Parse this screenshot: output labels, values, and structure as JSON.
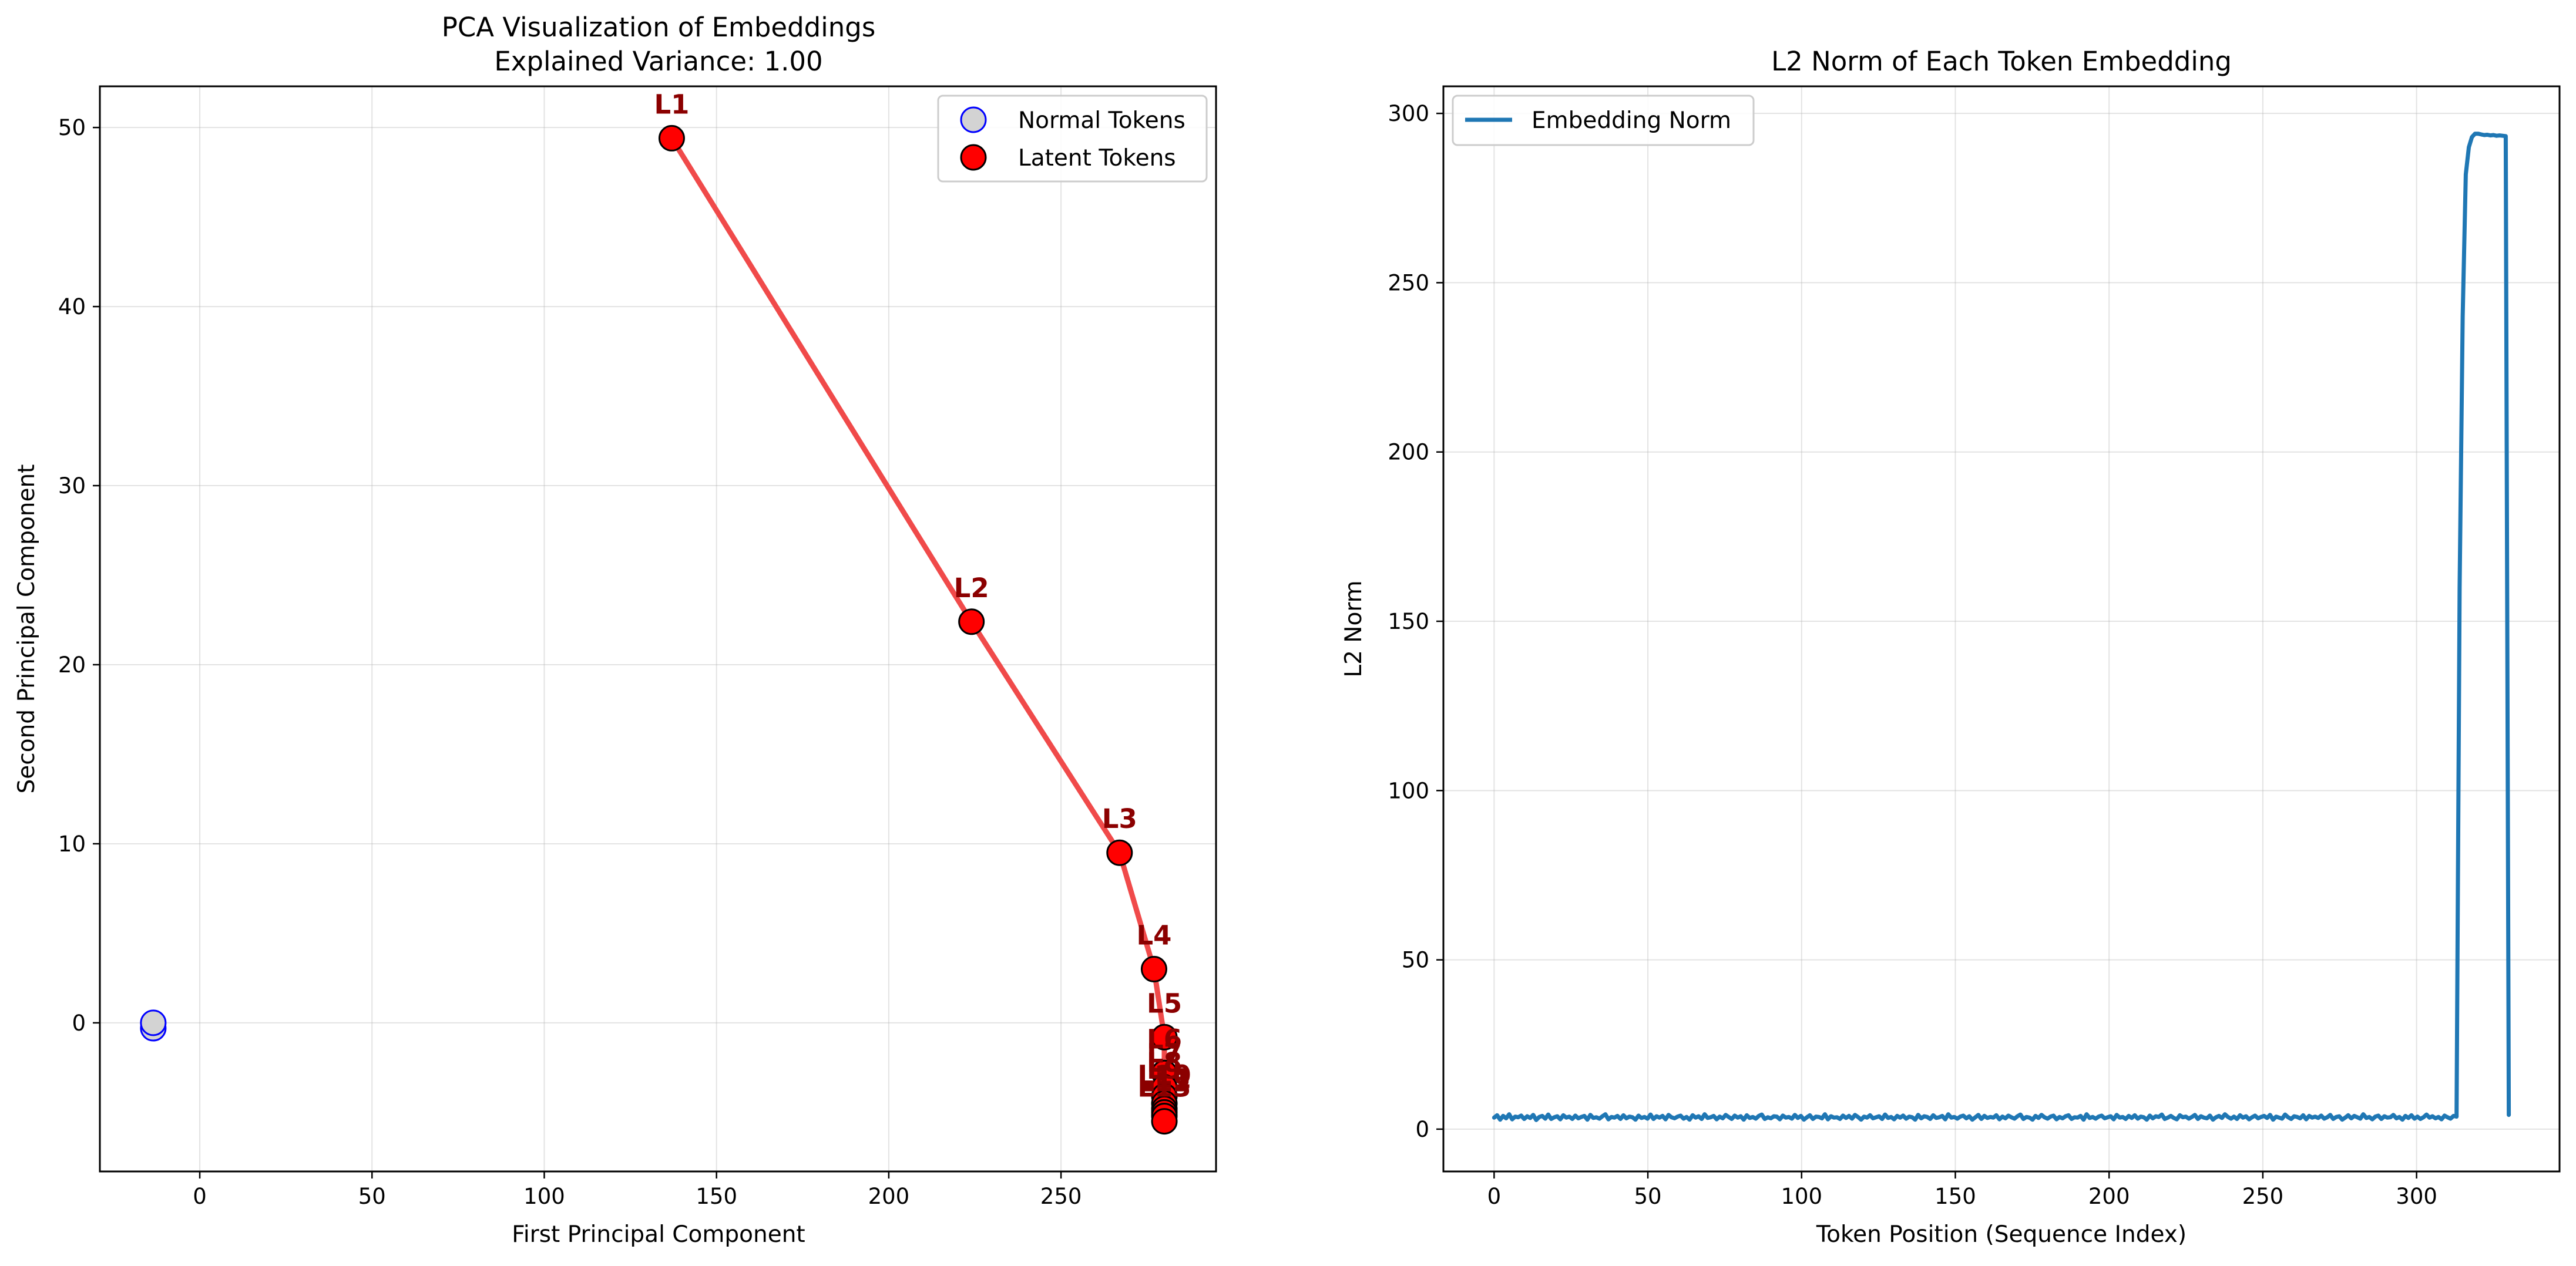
{
  "chart_data": [
    {
      "type": "scatter",
      "title": "PCA Visualization of Embeddings",
      "subtitle": "Explained Variance: 1.00",
      "xlabel": "First Principal Component",
      "ylabel": "Second Principal Component",
      "xlim": [
        -29,
        295
      ],
      "ylim": [
        -8.3,
        52.3
      ],
      "x_ticks": [
        0,
        50,
        100,
        150,
        200,
        250
      ],
      "y_ticks": [
        0,
        10,
        20,
        30,
        40,
        50
      ],
      "grid": true,
      "legend": {
        "location": "upper right",
        "entries": [
          "Normal Tokens",
          "Latent Tokens"
        ]
      },
      "series": [
        {
          "name": "Normal Tokens",
          "marker_fill": "#d3d3d3",
          "marker_edge": "#0000ff",
          "points": [
            {
              "x": -13.5,
              "y": -0.3
            },
            {
              "x": -13.5,
              "y": 0.0
            }
          ]
        },
        {
          "name": "Latent Tokens",
          "marker_fill": "#ff0000",
          "marker_edge": "#000000",
          "line_color": "#f04a4a",
          "label_color": "#8b0000",
          "points": [
            {
              "label": "L1",
              "x": 137.0,
              "y": 49.4
            },
            {
              "label": "L2",
              "x": 224.0,
              "y": 22.4
            },
            {
              "label": "L3",
              "x": 267.0,
              "y": 9.5
            },
            {
              "label": "L4",
              "x": 277.0,
              "y": 3.0
            },
            {
              "label": "L5",
              "x": 280.0,
              "y": -0.8
            },
            {
              "label": "L6",
              "x": 280.0,
              "y": -2.8
            },
            {
              "label": "L7",
              "x": 280.0,
              "y": -3.6
            },
            {
              "label": "L8",
              "x": 280.0,
              "y": -4.1
            },
            {
              "label": "L9",
              "x": 280.0,
              "y": -4.5
            },
            {
              "label": "L10",
              "x": 280.0,
              "y": -4.8
            },
            {
              "label": "L11",
              "x": 280.0,
              "y": -5.0
            },
            {
              "label": "L12",
              "x": 280.0,
              "y": -5.2
            },
            {
              "label": "L13",
              "x": 280.0,
              "y": -5.5
            }
          ]
        }
      ]
    },
    {
      "type": "line",
      "title": "L2 Norm of Each Token Embedding",
      "xlabel": "Token Position (Sequence Index)",
      "ylabel": "L2 Norm",
      "xlim": [
        -16.5,
        346.5
      ],
      "ylim": [
        -12.5,
        308.0
      ],
      "x_ticks": [
        0,
        50,
        100,
        150,
        200,
        250,
        300
      ],
      "y_ticks": [
        0,
        50,
        100,
        150,
        200,
        250,
        300
      ],
      "grid": true,
      "legend": {
        "location": "upper left",
        "entries": [
          "Embedding Norm"
        ]
      },
      "series": [
        {
          "name": "Embedding Norm",
          "color": "#1f77b4",
          "baseline": {
            "x_start": 0,
            "x_end": 313,
            "values": [
              3.4,
              4.1,
              2.8,
              3.9,
              3.2,
              4.4,
              2.9,
              3.7,
              3.5,
              4.0,
              3.0,
              3.8,
              3.3,
              4.2,
              2.7,
              3.6,
              3.9,
              3.1,
              4.3,
              3.0,
              3.5,
              3.8,
              2.9,
              4.1,
              3.4,
              3.7,
              3.0,
              4.0,
              3.2,
              3.6,
              3.9,
              2.8,
              4.2,
              3.3,
              3.5,
              3.1,
              3.8,
              4.4,
              2.9,
              3.6,
              3.4,
              3.9,
              3.0,
              4.1,
              3.2,
              3.7,
              3.5,
              2.8,
              4.0,
              3.3,
              3.6,
              3.1,
              4.3,
              3.0,
              3.8,
              3.4,
              3.9,
              2.9,
              4.2,
              3.5,
              3.2,
              3.7,
              4.0,
              3.1,
              3.6,
              2.8,
              4.1,
              3.4,
              3.8,
              3.0,
              4.4,
              3.3,
              3.5,
              3.9,
              2.9,
              3.7,
              3.2,
              4.2,
              3.6,
              3.0,
              4.0,
              3.4,
              3.8,
              2.8,
              4.1,
              3.3,
              3.6,
              3.1,
              3.9,
              4.3,
              3.0,
              3.5,
              3.2,
              3.8,
              3.7,
              2.9,
              4.0,
              3.4,
              3.6,
              3.1,
              4.2,
              3.3,
              3.9,
              2.8,
              3.5,
              4.1,
              3.0,
              3.7,
              3.6,
              3.2,
              4.4,
              2.9,
              3.8,
              3.4,
              3.5,
              3.0,
              4.0,
              3.3,
              3.9,
              3.1,
              4.2,
              3.6,
              2.8,
              3.7,
              3.4,
              4.1,
              3.2,
              3.5,
              3.8,
              3.0,
              4.3,
              3.3,
              3.6,
              2.9,
              3.9,
              3.4,
              4.0,
              3.1,
              3.7,
              3.5,
              2.8,
              4.2,
              3.2,
              3.8,
              3.6,
              3.0,
              4.1,
              3.3,
              3.5,
              3.9,
              2.9,
              4.4,
              3.4,
              3.6,
              3.1,
              3.7,
              4.0,
              3.2,
              3.8,
              2.8,
              3.5,
              4.2,
              3.0,
              3.9,
              3.3,
              3.6,
              3.4,
              4.1,
              2.9,
              3.7,
              3.2,
              4.0,
              3.5,
              3.1,
              3.8,
              4.3,
              3.0,
              3.6,
              3.4,
              2.8,
              3.9,
              3.3,
              4.2,
              3.5,
              3.1,
              3.7,
              4.0,
              2.9,
              3.6,
              3.2,
              3.8,
              4.1,
              3.0,
              3.5,
              3.4,
              3.9,
              2.8,
              4.4,
              3.3,
              3.6,
              3.1,
              3.7,
              4.0,
              3.2,
              3.5,
              3.8,
              2.9,
              4.2,
              3.4,
              3.6,
              3.0,
              3.9,
              3.3,
              4.1,
              3.1,
              3.7,
              3.5,
              2.8,
              4.0,
              3.2,
              3.8,
              3.6,
              4.3,
              3.0,
              3.4,
              3.9,
              3.3,
              2.9,
              4.1,
              3.5,
              3.7,
              3.1,
              3.6,
              4.2,
              3.0,
              3.8,
              3.4,
              3.2,
              4.0,
              2.8,
              3.5,
              3.9,
              3.3,
              4.4,
              3.6,
              3.1,
              3.7,
              3.0,
              4.1,
              3.4,
              3.8,
              2.9,
              3.5,
              4.0,
              3.2,
              3.6,
              3.9,
              3.3,
              4.2,
              2.8,
              3.7,
              3.4,
              3.1,
              4.3,
              3.5,
              3.0,
              3.8,
              3.6,
              3.2,
              4.1,
              2.9,
              3.9,
              3.4,
              3.7,
              3.3,
              4.0,
              3.1,
              3.5,
              4.2,
              3.0,
              3.6,
              3.8,
              2.8,
              3.4,
              4.1,
              3.2,
              3.9,
              3.5,
              3.1,
              4.4,
              3.3,
              3.6,
              2.9,
              3.7,
              4.0,
              3.0,
              3.8,
              3.4,
              3.5,
              4.2,
              3.2,
              3.6,
              2.8,
              3.9,
              3.3,
              4.1,
              3.1,
              3.7,
              3.0,
              3.5,
              4.3,
              3.4,
              3.8,
              3.2,
              3.6,
              2.9,
              4.0,
              3.5,
              3.1,
              3.9,
              3.7
            ]
          },
          "spike": {
            "x": [
              313,
              314,
              315,
              316,
              317,
              318,
              319,
              320,
              321,
              322,
              323,
              324,
              325,
              326,
              327,
              328,
              329,
              330
            ],
            "values": [
              4.1,
              160.0,
              240.0,
              282.0,
              290.0,
              293.0,
              294.0,
              294.0,
              293.8,
              293.6,
              293.7,
              293.5,
              293.6,
              293.4,
              293.5,
              293.4,
              293.3,
              4.2
            ]
          }
        }
      ]
    }
  ]
}
